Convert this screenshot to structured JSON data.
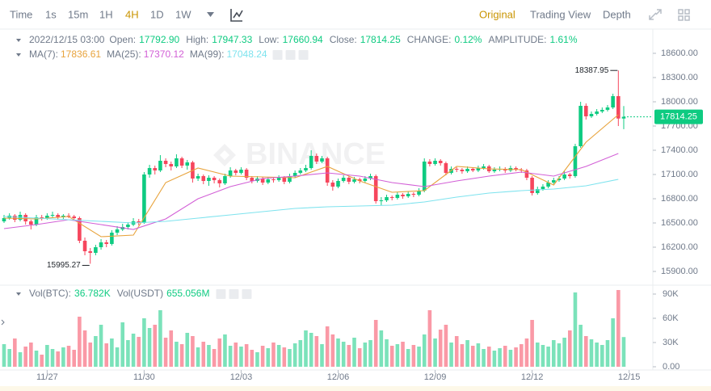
{
  "toolbar": {
    "intervals": [
      "Time",
      "1s",
      "15m",
      "1H",
      "4H",
      "1D",
      "1W"
    ],
    "views": [
      "Original",
      "Trading View",
      "Depth"
    ]
  },
  "chart_data": {
    "type": "candlestick",
    "watermark": "BINANCE",
    "info": {
      "time": "2022/12/15 03:00",
      "items": [
        {
          "label": "Open:",
          "value": "17792.90"
        },
        {
          "label": "High:",
          "value": "17947.33"
        },
        {
          "label": "Low:",
          "value": "17660.94"
        },
        {
          "label": "Close:",
          "value": "17814.25"
        },
        {
          "label": "CHANGE:",
          "value": "0.12%"
        },
        {
          "label": "AMPLITUDE:",
          "value": "1.61%"
        }
      ]
    },
    "up_color": "#0ecb81",
    "down_color": "#f6465d",
    "xlim": [
      -0.75,
      120.4
    ],
    "xticks": [
      {
        "value": 8,
        "label": "11/27"
      },
      {
        "value": 26,
        "label": "11/30"
      },
      {
        "value": 44,
        "label": "12/03"
      },
      {
        "value": 62,
        "label": "12/06"
      },
      {
        "value": 80,
        "label": "12/09"
      },
      {
        "value": 98,
        "label": "12/12"
      },
      {
        "value": 116,
        "label": "12/15"
      }
    ],
    "ylim": [
      15700,
      18900
    ],
    "yticks": [
      {
        "value": 15900,
        "label": "15900.00"
      },
      {
        "value": 16200,
        "label": "16200.00"
      },
      {
        "value": 16500,
        "label": "16500.00"
      },
      {
        "value": 16800,
        "label": "16800.00"
      },
      {
        "value": 17100,
        "label": "17100.00"
      },
      {
        "value": 17400,
        "label": "17400.00"
      },
      {
        "value": 17700,
        "label": "17700.00"
      },
      {
        "value": 18000,
        "label": "18000.00"
      },
      {
        "value": 18300,
        "label": "18300.00"
      },
      {
        "value": 18600,
        "label": "18600.00"
      }
    ],
    "grid": false,
    "ohlc": [
      [
        16520,
        16600,
        16500,
        16560
      ],
      [
        16560,
        16620,
        16540,
        16590
      ],
      [
        16590,
        16610,
        16510,
        16540
      ],
      [
        16540,
        16640,
        16520,
        16600
      ],
      [
        16600,
        16620,
        16480,
        16520
      ],
      [
        16520,
        16540,
        16420,
        16480
      ],
      [
        16480,
        16600,
        16460,
        16570
      ],
      [
        16570,
        16600,
        16530,
        16560
      ],
      [
        16560,
        16620,
        16540,
        16590
      ],
      [
        16590,
        16640,
        16570,
        16600
      ],
      [
        16600,
        16620,
        16540,
        16570
      ],
      [
        16570,
        16610,
        16550,
        16590
      ],
      [
        16590,
        16620,
        16560,
        16580
      ],
      [
        16580,
        16600,
        16530,
        16560
      ],
      [
        16560,
        16580,
        16250,
        16280
      ],
      [
        16280,
        16320,
        16100,
        16150
      ],
      [
        16150,
        16190,
        15995.27,
        16130
      ],
      [
        16130,
        16230,
        16100,
        16200
      ],
      [
        16200,
        16300,
        16170,
        16260
      ],
      [
        16260,
        16290,
        16200,
        16240
      ],
      [
        16240,
        16410,
        16220,
        16380
      ],
      [
        16380,
        16460,
        16350,
        16420
      ],
      [
        16420,
        16490,
        16400,
        16450
      ],
      [
        16450,
        16510,
        16420,
        16480
      ],
      [
        16480,
        16560,
        16460,
        16520
      ],
      [
        16520,
        16550,
        16470,
        16500
      ],
      [
        16500,
        17130,
        16490,
        17100
      ],
      [
        17100,
        17220,
        17060,
        17180
      ],
      [
        17180,
        17210,
        17100,
        17150
      ],
      [
        17150,
        17340,
        17130,
        17270
      ],
      [
        17270,
        17300,
        17190,
        17230
      ],
      [
        17230,
        17260,
        17150,
        17200
      ],
      [
        17200,
        17350,
        17180,
        17300
      ],
      [
        17300,
        17320,
        17180,
        17210
      ],
      [
        17210,
        17280,
        17160,
        17250
      ],
      [
        17250,
        17270,
        17000,
        17050
      ],
      [
        17050,
        17110,
        17020,
        17080
      ],
      [
        17080,
        17100,
        16980,
        17020
      ],
      [
        17020,
        17090,
        16960,
        17060
      ],
      [
        17060,
        17080,
        16990,
        17030
      ],
      [
        17030,
        17050,
        16940,
        16990
      ],
      [
        16990,
        17110,
        16970,
        17080
      ],
      [
        17080,
        17190,
        17060,
        17150
      ],
      [
        17150,
        17170,
        17090,
        17120
      ],
      [
        17120,
        17190,
        17100,
        17160
      ],
      [
        17160,
        17180,
        17030,
        17060
      ],
      [
        17060,
        17080,
        16990,
        17020
      ],
      [
        17020,
        17080,
        17000,
        17050
      ],
      [
        17050,
        17070,
        16970,
        17000
      ],
      [
        17000,
        17070,
        16980,
        17040
      ],
      [
        17040,
        17060,
        17000,
        17030
      ],
      [
        17030,
        17090,
        17010,
        17060
      ],
      [
        17060,
        17080,
        16980,
        17010
      ],
      [
        17010,
        17110,
        16990,
        17080
      ],
      [
        17080,
        17150,
        17060,
        17120
      ],
      [
        17120,
        17180,
        17100,
        17150
      ],
      [
        17150,
        17220,
        17130,
        17180
      ],
      [
        17180,
        17400,
        17160,
        17330
      ],
      [
        17330,
        17360,
        17230,
        17260
      ],
      [
        17260,
        17330,
        17240,
        17300
      ],
      [
        17300,
        17320,
        16960,
        17000
      ],
      [
        17000,
        17030,
        16900,
        16950
      ],
      [
        16950,
        17050,
        16930,
        17020
      ],
      [
        17020,
        17090,
        17000,
        17060
      ],
      [
        17060,
        17080,
        16980,
        17010
      ],
      [
        17010,
        17070,
        16990,
        17040
      ],
      [
        17040,
        17060,
        16990,
        17020
      ],
      [
        17020,
        17080,
        17000,
        17050
      ],
      [
        17050,
        17110,
        17030,
        17080
      ],
      [
        17080,
        17100,
        16740,
        16770
      ],
      [
        16770,
        16820,
        16720,
        16780
      ],
      [
        16780,
        16850,
        16760,
        16820
      ],
      [
        16820,
        16840,
        16780,
        16810
      ],
      [
        16810,
        16880,
        16790,
        16850
      ],
      [
        16850,
        16870,
        16800,
        16830
      ],
      [
        16830,
        16890,
        16810,
        16860
      ],
      [
        16860,
        16880,
        16820,
        16850
      ],
      [
        16850,
        16930,
        16830,
        16900
      ],
      [
        16900,
        17300,
        16880,
        17260
      ],
      [
        17260,
        17290,
        17200,
        17230
      ],
      [
        17230,
        17300,
        17210,
        17270
      ],
      [
        17270,
        17290,
        17210,
        17240
      ],
      [
        17240,
        17260,
        17090,
        17120
      ],
      [
        17120,
        17200,
        17100,
        17170
      ],
      [
        17170,
        17190,
        17130,
        17160
      ],
      [
        17160,
        17180,
        17110,
        17140
      ],
      [
        17140,
        17200,
        17120,
        17170
      ],
      [
        17170,
        17190,
        17130,
        17150
      ],
      [
        17150,
        17210,
        17130,
        17180
      ],
      [
        17180,
        17230,
        17160,
        17200
      ],
      [
        17200,
        17220,
        17120,
        17140
      ],
      [
        17140,
        17190,
        17120,
        17160
      ],
      [
        17160,
        17200,
        17140,
        17170
      ],
      [
        17170,
        17190,
        17120,
        17150
      ],
      [
        17150,
        17210,
        17130,
        17180
      ],
      [
        17180,
        17200,
        17140,
        17160
      ],
      [
        17160,
        17180,
        17120,
        17150
      ],
      [
        17150,
        17170,
        17030,
        17060
      ],
      [
        17060,
        17080,
        16840,
        16870
      ],
      [
        16870,
        16950,
        16850,
        16920
      ],
      [
        16920,
        16980,
        16900,
        16950
      ],
      [
        16950,
        17030,
        16930,
        17000
      ],
      [
        17000,
        17060,
        16980,
        17030
      ],
      [
        17030,
        17080,
        17010,
        17050
      ],
      [
        17050,
        17140,
        17030,
        17100
      ],
      [
        17100,
        17120,
        17050,
        17080
      ],
      [
        17080,
        17480,
        17060,
        17450
      ],
      [
        17450,
        18000,
        17430,
        17950
      ],
      [
        17950,
        17980,
        17780,
        17820
      ],
      [
        17820,
        17880,
        17800,
        17850
      ],
      [
        17850,
        17910,
        17830,
        17880
      ],
      [
        17880,
        17930,
        17860,
        17900
      ],
      [
        17900,
        17960,
        17880,
        17930
      ],
      [
        17930,
        18100,
        17910,
        18070
      ],
      [
        18070,
        18387.95,
        17700,
        17792.9
      ],
      [
        17792.9,
        17947.33,
        17660.94,
        17814.25
      ]
    ],
    "series": [
      {
        "name": "MA(7):",
        "legend_value": "17836.61",
        "color": "#e8a33c",
        "x": [
          0,
          6,
          12,
          18,
          24,
          30,
          36,
          42,
          48,
          54,
          60,
          66,
          72,
          78,
          84,
          90,
          96,
          102,
          108,
          114
        ],
        "values": [
          16560,
          16550,
          16580,
          16330,
          16350,
          17000,
          17180,
          17080,
          17070,
          17060,
          17200,
          17020,
          16880,
          16900,
          17200,
          17170,
          17160,
          16970,
          17500,
          17840
        ]
      },
      {
        "name": "MA(25):",
        "legend_value": "17370.12",
        "color": "#d25fd6",
        "x": [
          0,
          6,
          12,
          18,
          24,
          30,
          36,
          42,
          48,
          54,
          60,
          66,
          72,
          78,
          84,
          90,
          96,
          102,
          108,
          114
        ],
        "values": [
          16430,
          16480,
          16540,
          16480,
          16420,
          16550,
          16800,
          16950,
          17050,
          17080,
          17120,
          17080,
          17000,
          16950,
          17020,
          17080,
          17130,
          17080,
          17200,
          17360
        ]
      },
      {
        "name": "MA(99):",
        "legend_value": "17048.24",
        "color": "#7ee3ee",
        "x": [
          0,
          6,
          12,
          18,
          24,
          30,
          36,
          42,
          48,
          54,
          60,
          66,
          72,
          78,
          84,
          90,
          96,
          102,
          108,
          114
        ],
        "values": [
          16580,
          16560,
          16540,
          16520,
          16500,
          16520,
          16560,
          16600,
          16640,
          16680,
          16700,
          16710,
          16720,
          16760,
          16820,
          16870,
          16900,
          16920,
          16960,
          17040
        ]
      }
    ],
    "volume": {
      "legend": [
        {
          "label": "Vol(BTC):",
          "value": "36.782K"
        },
        {
          "label": "Vol(USDT)",
          "value": "655.056M"
        }
      ],
      "ylim": [
        0,
        100000
      ],
      "yticks": [
        {
          "value": 0,
          "label": "0.00"
        },
        {
          "value": 30000,
          "label": "30K"
        },
        {
          "value": 60000,
          "label": "60K"
        },
        {
          "value": 90000,
          "label": "90K"
        }
      ],
      "values": [
        28000,
        22000,
        35000,
        18000,
        25000,
        30000,
        20000,
        15000,
        27000,
        22000,
        19000,
        24000,
        26000,
        21000,
        62000,
        45000,
        30000,
        38000,
        52000,
        29000,
        35000,
        24000,
        55000,
        33000,
        41000,
        37000,
        60000,
        48000,
        52000,
        70000,
        36000,
        45000,
        31000,
        28000,
        42000,
        38000,
        24000,
        31000,
        27000,
        22000,
        35000,
        40000,
        26000,
        30000,
        25000,
        28000,
        21000,
        18000,
        26000,
        23000,
        30000,
        27000,
        24000,
        22000,
        29000,
        33000,
        45000,
        42000,
        38000,
        28000,
        50000,
        40000,
        35000,
        31000,
        27000,
        36000,
        23000,
        30000,
        33000,
        58000,
        45000,
        34000,
        26000,
        28000,
        31000,
        22000,
        27000,
        25000,
        40000,
        70000,
        35000,
        46000,
        52000,
        30000,
        38000,
        28000,
        33000,
        26000,
        29000,
        22000,
        25000,
        20000,
        23000,
        26000,
        21000,
        24000,
        28000,
        35000,
        58000,
        30000,
        27000,
        25000,
        33000,
        29000,
        36000,
        45000,
        92000,
        52000,
        38000,
        34000,
        30000,
        27000,
        33000,
        60000,
        95000,
        36782
      ]
    }
  }
}
